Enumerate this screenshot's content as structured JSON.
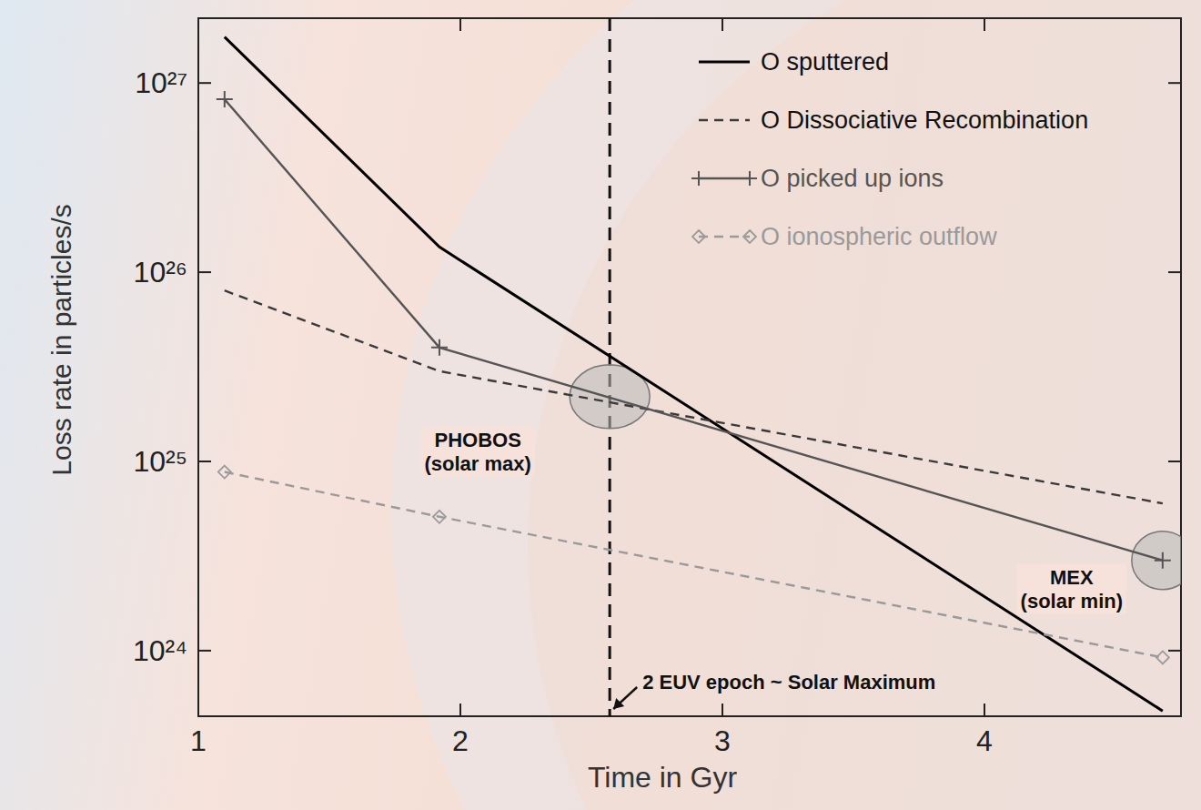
{
  "chart_data": {
    "type": "line",
    "x_label": "Time in Gyr",
    "y_label": "Loss rate in particles/s",
    "log": "y",
    "xlim": [
      1,
      4.75
    ],
    "xticks": [
      1,
      2,
      3,
      4
    ],
    "ylim": [
      4.5e+23,
      2.2e+27
    ],
    "yticks": [
      {
        "value": 1e+24,
        "label": "10²⁴"
      },
      {
        "value": 1e+25,
        "label": "10²⁵"
      },
      {
        "value": 1e+26,
        "label": "10²⁶"
      },
      {
        "value": 1e+27,
        "label": "10²⁷"
      }
    ],
    "legend": "upper right",
    "series": [
      {
        "name": "O sputtered",
        "color": "#000000",
        "line_style": "solid",
        "marker": "none",
        "x": [
          1.1,
          1.92,
          4.68
        ],
        "values": [
          1.75e+27,
          1.36e+26,
          4.8e+23
        ]
      },
      {
        "name": "O Dissociative Recombination",
        "color": "#3a3a3a",
        "line_style": "dashed",
        "marker": "none",
        "x": [
          1.1,
          1.92,
          4.68
        ],
        "values": [
          8e+25,
          3e+25,
          6e+24
        ]
      },
      {
        "name": "O picked up ions",
        "color": "#555555",
        "line_style": "solid",
        "marker": "plus",
        "x": [
          1.1,
          1.92,
          4.68
        ],
        "values": [
          8.2e+26,
          4e+25,
          3e+24
        ]
      },
      {
        "name": "O ionospheric outflow",
        "color": "#9a9a9a",
        "line_style": "dashed",
        "marker": "diamond",
        "x": [
          1.1,
          1.92,
          4.68
        ],
        "values": [
          8.8e+24,
          5.1e+24,
          9.2e+23
        ]
      }
    ],
    "annotations": [
      {
        "x": 2.57,
        "text": "2 EUV epoch ~ Solar Maximum"
      },
      {
        "x": 2.57,
        "y": 2.2e+25,
        "text": [
          "PHOBOS",
          "(solar max)"
        ]
      },
      {
        "x": 4.68,
        "y": 3e+24,
        "text": [
          "MEX",
          "(solar min)"
        ]
      }
    ]
  }
}
